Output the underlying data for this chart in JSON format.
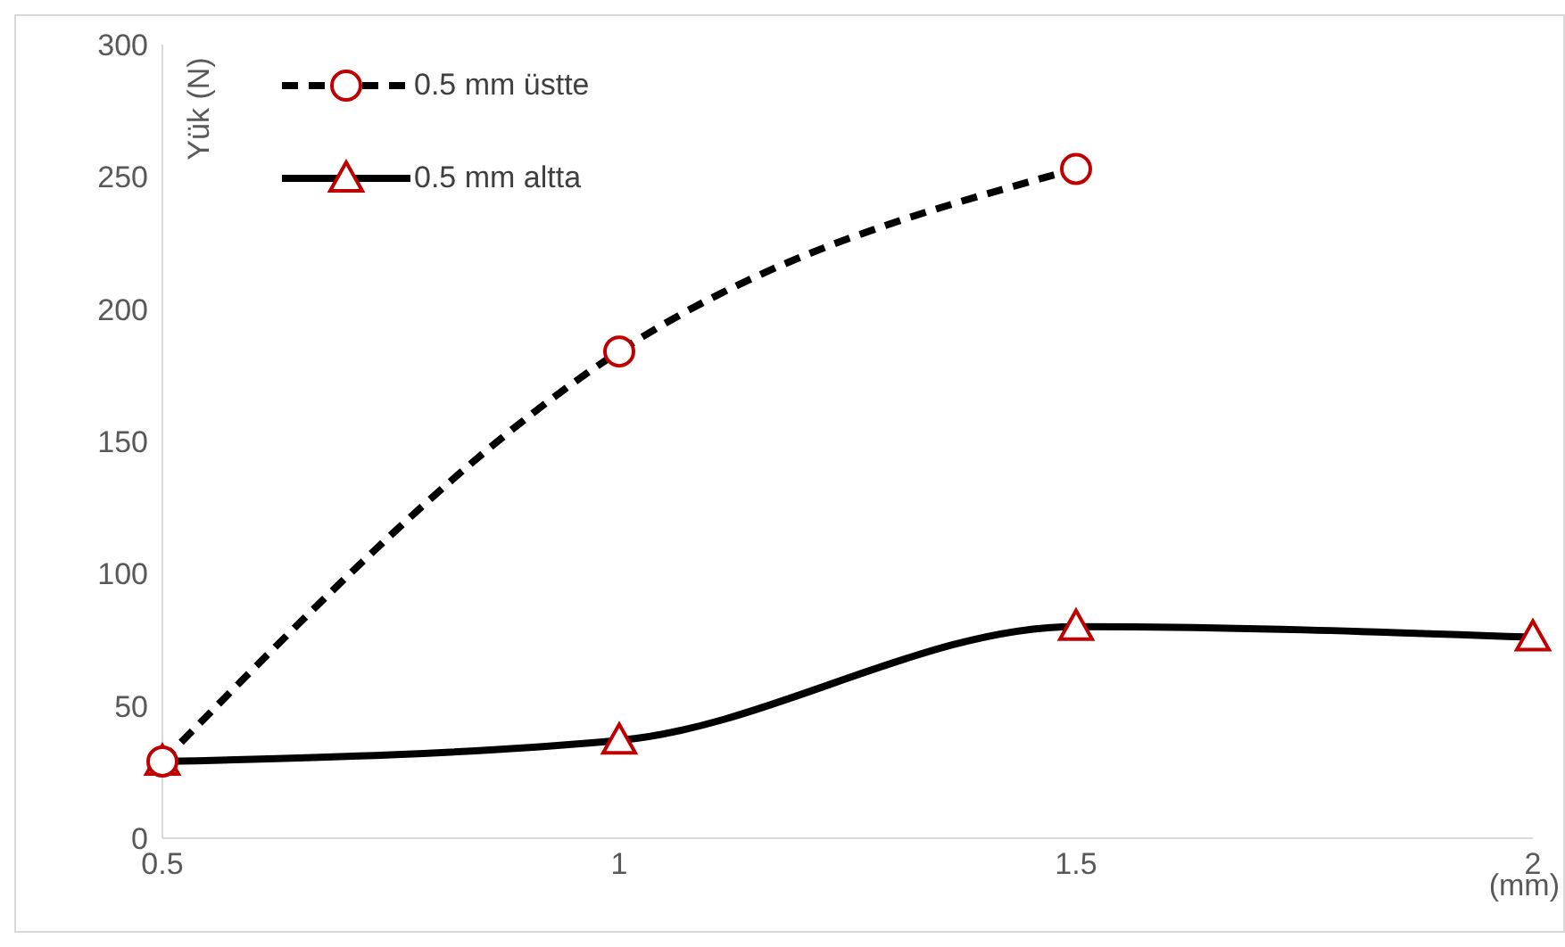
{
  "chart_data": {
    "type": "line",
    "xlabel": "(mm)",
    "ylabel": "Yük (N)",
    "categories": [
      "0.5",
      "1",
      "1.5",
      "2"
    ],
    "series": [
      {
        "name": "0.5 mm üstte",
        "color": "#000000",
        "values": [
          29,
          184,
          253,
          null
        ],
        "marker": "circle",
        "line_style": "dashed"
      },
      {
        "name": "0.5 mm altta",
        "color": "#000000",
        "values": [
          29,
          37,
          80,
          76
        ],
        "marker": "triangle",
        "line_style": "solid"
      }
    ],
    "ylim": [
      0,
      300
    ],
    "yticks": [
      0,
      50,
      100,
      150,
      200,
      250,
      300
    ],
    "legend": "top left"
  }
}
